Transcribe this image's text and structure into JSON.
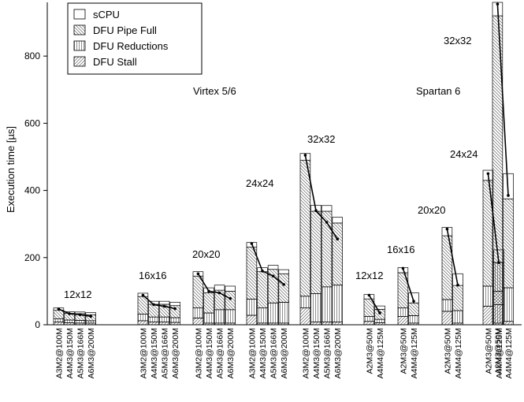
{
  "chart_data": {
    "type": "bar",
    "stacked": true,
    "ylabel": "Execution time [µs]",
    "ylim": [
      0,
      960
    ],
    "yticks": [
      0,
      200,
      400,
      600,
      800
    ],
    "grid": false,
    "legend_position": "top-left",
    "series": [
      {
        "name": "sCPU",
        "pattern": "blank"
      },
      {
        "name": "DFU Pipe Full",
        "pattern": "diag-back"
      },
      {
        "name": "DFU Reductions",
        "pattern": "vertical"
      },
      {
        "name": "DFU Stall",
        "pattern": "diag-fwd"
      }
    ],
    "annotations": [
      "Virtex 5/6",
      "Spartan 6"
    ],
    "groups": [
      {
        "label": "12x12",
        "categories": [
          "A3M2@100M",
          "A4M3@150M",
          "A5M3@166M",
          "A6M3@200M"
        ],
        "stall": [
          8,
          6,
          5,
          5
        ],
        "reductions": [
          10,
          8,
          8,
          7
        ],
        "pipe": [
          25,
          20,
          20,
          18
        ],
        "scpu": [
          7,
          5,
          5,
          6
        ],
        "line": [
          47,
          33,
          30,
          25
        ]
      },
      {
        "label": "16x16",
        "categories": [
          "A3M2@100M",
          "A4M3@150M",
          "A5M3@166M",
          "A6M3@200M"
        ],
        "stall": [
          12,
          8,
          8,
          7
        ],
        "reductions": [
          20,
          15,
          15,
          14
        ],
        "pipe": [
          52,
          38,
          38,
          36
        ],
        "scpu": [
          10,
          9,
          9,
          10
        ],
        "line": [
          88,
          60,
          55,
          48
        ]
      },
      {
        "label": "20x20",
        "categories": [
          "A3M2@100M",
          "A4M3@150M",
          "A5M3@166M",
          "A6M3@200M"
        ],
        "stall": [
          20,
          5,
          5,
          5
        ],
        "reductions": [
          30,
          30,
          40,
          40
        ],
        "pipe": [
          95,
          60,
          58,
          55
        ],
        "scpu": [
          13,
          15,
          15,
          15
        ],
        "line": [
          152,
          100,
          95,
          78
        ]
      },
      {
        "label": "24x24",
        "categories": [
          "A3M2@100M",
          "A4M3@150M",
          "A5M3@166M",
          "A6M3@200M"
        ],
        "stall": [
          28,
          5,
          5,
          5
        ],
        "reductions": [
          48,
          45,
          60,
          62
        ],
        "pipe": [
          155,
          108,
          100,
          85
        ],
        "scpu": [
          14,
          12,
          12,
          12
        ],
        "line": [
          242,
          160,
          145,
          120
        ]
      },
      {
        "label": "32x32",
        "categories": [
          "A3M2@100M",
          "A4M3@150M",
          "A5M3@166M",
          "A6M3@200M"
        ],
        "stall": [
          50,
          8,
          8,
          8
        ],
        "reductions": [
          35,
          85,
          105,
          110
        ],
        "pipe": [
          405,
          245,
          225,
          185
        ],
        "scpu": [
          20,
          18,
          17,
          17
        ],
        "line": [
          505,
          340,
          305,
          255
        ]
      },
      {
        "label": "12x12",
        "categories": [
          "A2M3@50M",
          "A4M4@125M"
        ],
        "stall": [
          10,
          6
        ],
        "reductions": [
          15,
          10
        ],
        "pipe": [
          52,
          30
        ],
        "scpu": [
          13,
          10
        ],
        "line": [
          88,
          35
        ]
      },
      {
        "label": "16x16",
        "categories": [
          "A2M3@50M",
          "A4M4@125M"
        ],
        "stall": [
          25,
          5
        ],
        "reductions": [
          25,
          22
        ],
        "pipe": [
          105,
          38
        ],
        "scpu": [
          15,
          30
        ],
        "line": [
          168,
          70
        ]
      },
      {
        "label": "20x20",
        "categories": [
          "A2M3@50M",
          "A4M4@125M"
        ],
        "stall": [
          40,
          5
        ],
        "reductions": [
          35,
          37
        ],
        "pipe": [
          190,
          75
        ],
        "scpu": [
          25,
          35
        ],
        "line": [
          285,
          118
        ]
      },
      {
        "label": "24x24",
        "categories": [
          "A2M3@50M",
          "A4M4@125M"
        ],
        "stall": [
          55,
          5
        ],
        "reductions": [
          60,
          55
        ],
        "pipe": [
          315,
          125
        ],
        "scpu": [
          30,
          38
        ],
        "line": [
          450,
          185
        ]
      },
      {
        "label": "32x32",
        "categories": [
          "A2M3@50M",
          "A4M4@125M"
        ],
        "stall": [
          100,
          10
        ],
        "reductions": [
          85,
          100
        ],
        "pipe": [
          735,
          265
        ],
        "scpu": [
          40,
          75
        ],
        "line": [
          955,
          385
        ]
      }
    ]
  }
}
